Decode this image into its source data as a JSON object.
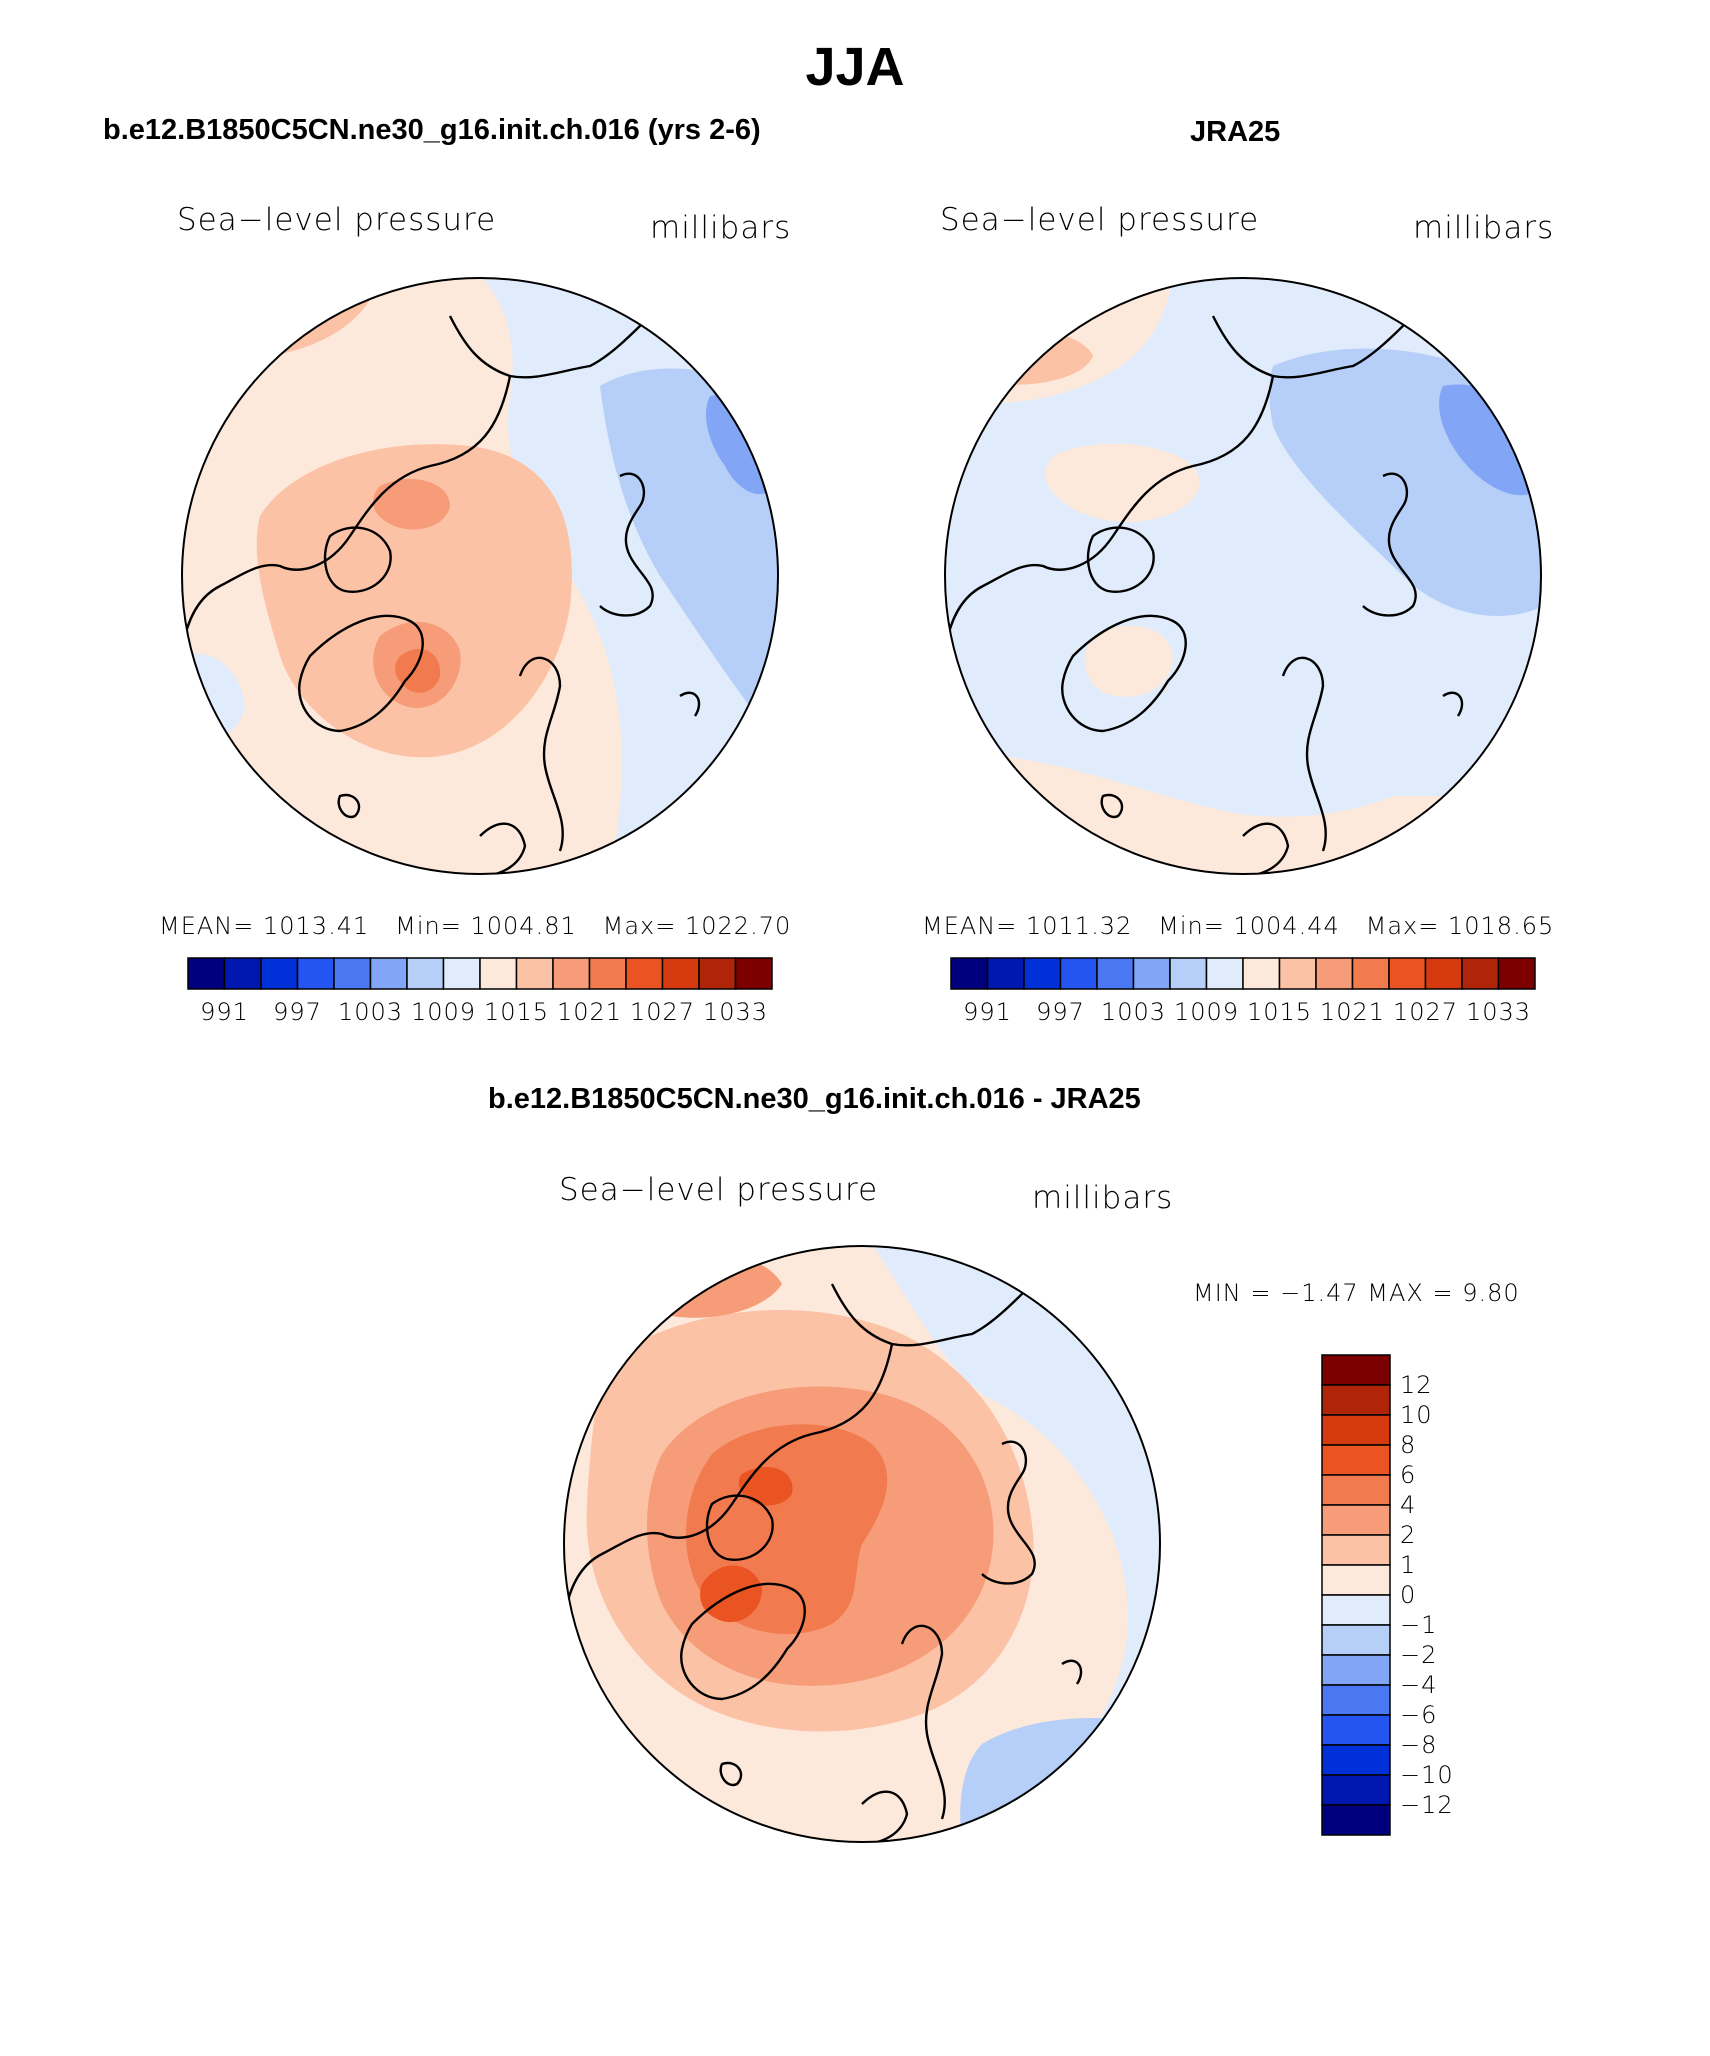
{
  "title": "JJA",
  "panels": [
    {
      "id": "model",
      "title": "b.e12.B1850C5CN.ne30_g16.init.ch.016 (yrs 2-6)",
      "variable": "Sea−level pressure",
      "units": "millibars",
      "stats": {
        "mean_label": "MEAN=",
        "mean": "1013.41",
        "min_label": "Min=",
        "min": "1004.81",
        "max_label": "Max=",
        "max": "1022.70"
      }
    },
    {
      "id": "obs",
      "title": "JRA25",
      "variable": "Sea−level pressure",
      "units": "millibars",
      "stats": {
        "mean_label": "MEAN=",
        "mean": "1011.32",
        "min_label": "Min=",
        "min": "1004.44",
        "max_label": "Max=",
        "max": "1018.65"
      }
    },
    {
      "id": "diff",
      "title": "b.e12.B1850C5CN.ne30_g16.init.ch.016 - JRA25",
      "variable": "Sea−level pressure",
      "units": "millibars",
      "stats_text": "MIN =   −1.47 MAX =     9.80"
    }
  ],
  "colorbar_abs": {
    "colors": [
      "#00007f",
      "#0018b0",
      "#0030d8",
      "#2455f0",
      "#4a78f2",
      "#82a6f5",
      "#b5cff8",
      "#e0ecfb",
      "#fde9dc",
      "#fbc2a6",
      "#f79c78",
      "#f27a4f",
      "#ea5322",
      "#d53a0e",
      "#b02508",
      "#7c0000"
    ],
    "tick_labels": [
      "991",
      "997",
      "1003",
      "1009",
      "1015",
      "1021",
      "1027",
      "1033"
    ]
  },
  "colorbar_diff": {
    "colors": [
      "#00007f",
      "#0018b0",
      "#0030d8",
      "#2455f0",
      "#4a78f2",
      "#82a6f5",
      "#b5cff8",
      "#e0ecfb",
      "#fde9dc",
      "#fbc2a6",
      "#f79c78",
      "#f27a4f",
      "#ea5322",
      "#d53a0e",
      "#b02508",
      "#7c0000"
    ],
    "tick_labels": [
      "12",
      "10",
      "8",
      "6",
      "4",
      "2",
      "1",
      "0",
      "−1",
      "−2",
      "−4",
      "−6",
      "−8",
      "−10",
      "−12"
    ]
  },
  "map_colors": {
    "blue_light": "#e0ecfb",
    "blue_mid": "#b5cff8",
    "blue_dark": "#82a6f5",
    "orange_pale": "#fde9dc",
    "orange_light": "#fbc2a6",
    "orange_mid": "#f79c78",
    "orange_strong": "#f27a4f",
    "orange_deep": "#ea5322"
  }
}
